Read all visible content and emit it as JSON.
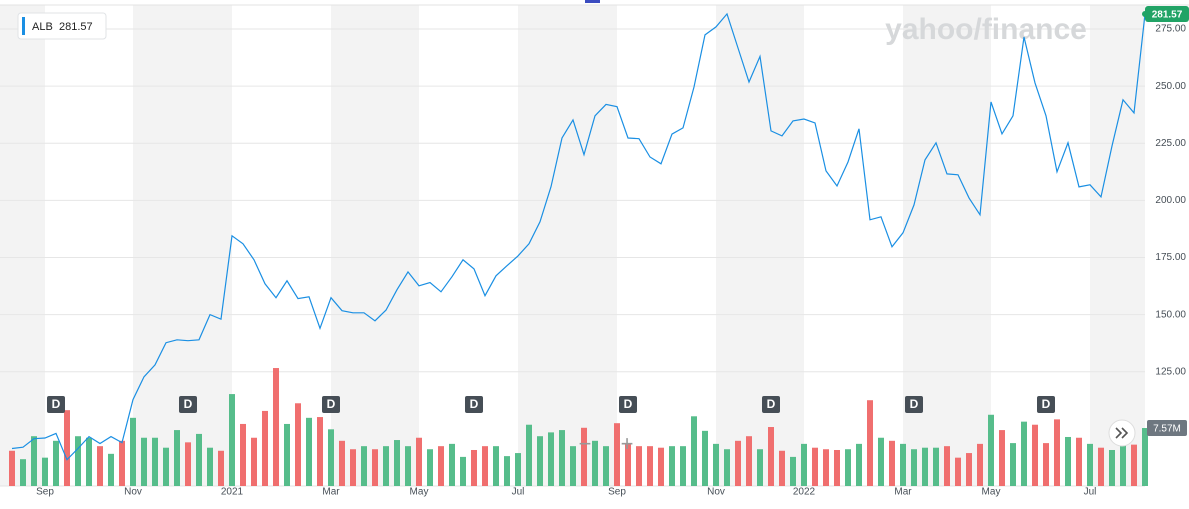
{
  "chart_data": {
    "type": "line",
    "logo": "yahoo/finance",
    "categories": [
      null,
      null,
      null,
      "Sep",
      null,
      null,
      null,
      null,
      null,
      null,
      null,
      "Nov",
      null,
      null,
      null,
      null,
      null,
      null,
      null,
      null,
      "2021",
      null,
      null,
      null,
      null,
      null,
      null,
      null,
      null,
      "Mar",
      null,
      null,
      null,
      null,
      null,
      null,
      null,
      "May",
      null,
      null,
      null,
      null,
      null,
      null,
      null,
      null,
      "Jul",
      null,
      null,
      null,
      null,
      null,
      null,
      null,
      null,
      "Sep",
      null,
      null,
      null,
      null,
      null,
      null,
      null,
      null,
      "Nov",
      null,
      null,
      null,
      null,
      null,
      null,
      null,
      "2022",
      null,
      null,
      null,
      null,
      null,
      null,
      null,
      null,
      "Mar",
      null,
      null,
      null,
      null,
      null,
      null,
      null,
      "May",
      null,
      null,
      null,
      null,
      null,
      null,
      null,
      null,
      "Jul",
      null,
      null,
      null,
      null,
      null
    ],
    "series": [
      {
        "name": "ALB",
        "color": "#1a8fe3",
        "values": [
          91.4,
          92,
          95.7,
          96,
          98,
          86.5,
          91.4,
          96.6,
          93.6,
          96.6,
          94,
          112.8,
          122.8,
          128,
          137.7,
          139,
          138.6,
          139,
          150,
          148,
          184.5,
          181,
          174,
          163.5,
          157.4,
          164.8,
          157,
          157.8,
          144,
          157.4,
          151.7,
          150.8,
          150.8,
          147.3,
          152,
          160.9,
          168.7,
          162.6,
          164,
          160,
          166.6,
          174,
          170,
          158.3,
          167,
          171.4,
          175.7,
          181,
          190.6,
          206,
          227.3,
          235.2,
          220,
          237,
          242,
          241,
          227.3,
          227,
          219,
          216,
          229,
          231.7,
          249.6,
          272.4,
          275.9,
          281.6,
          266.7,
          251.8,
          263,
          230.4,
          228.2,
          234.8,
          235.6,
          233.9,
          212.9,
          206.3,
          216.8,
          231.3,
          191.5,
          192.8,
          179.7,
          185.8,
          198,
          217.7,
          225.2,
          211.6,
          211.2,
          201.1,
          193.7,
          243.1,
          229.1,
          237,
          271.5,
          251.4,
          237,
          212.5,
          225.2,
          205.9,
          206.8,
          201.5,
          223.8,
          244,
          238.3,
          281.57
        ]
      }
    ],
    "ylim": [
      75,
      285.5
    ],
    "yticks": [
      {
        "value": 125,
        "label": "125.00"
      },
      {
        "value": 150,
        "label": "150.00"
      },
      {
        "value": 175,
        "label": "175.00"
      },
      {
        "value": 200,
        "label": "200.00"
      },
      {
        "value": 225,
        "label": "225.00"
      },
      {
        "value": 250,
        "label": "250.00"
      },
      {
        "value": 275,
        "label": "275.00"
      }
    ],
    "grid": true,
    "volume": {
      "up_color": "#56bd8b",
      "down_color": "#f06f6f",
      "last_label": "7.57M",
      "values": [
        4.6,
        3.5,
        6.5,
        3.7,
        5.9,
        9.9,
        6.5,
        6.3,
        5.2,
        4.2,
        5.9,
        8.9,
        6.3,
        6.3,
        5.0,
        7.3,
        5.7,
        6.8,
        5.0,
        4.6,
        12.0,
        8.1,
        6.3,
        9.8,
        15.4,
        8.1,
        10.8,
        8.9,
        9.0,
        7.4,
        5.9,
        4.8,
        5.2,
        4.8,
        5.2,
        6.0,
        5.2,
        6.3,
        4.8,
        5.2,
        5.5,
        3.8,
        4.7,
        5.2,
        5.2,
        3.9,
        4.3,
        8.0,
        6.5,
        7.0,
        7.3,
        5.2,
        7.6,
        5.9,
        5.2,
        8.2,
        5.6,
        5.2,
        5.2,
        5.0,
        5.2,
        5.2,
        9.1,
        7.2,
        5.5,
        4.8,
        5.9,
        6.5,
        4.8,
        7.7,
        4.6,
        3.8,
        5.5,
        5.0,
        4.8,
        4.7,
        4.8,
        5.5,
        11.2,
        6.3,
        5.9,
        5.5,
        4.8,
        5.0,
        5.0,
        5.2,
        3.7,
        4.3,
        5.5,
        9.3,
        7.3,
        5.6,
        8.4,
        8.0,
        5.6,
        8.7,
        6.4,
        6.3,
        5.5,
        5.0,
        4.7,
        5.5,
        5.4,
        7.57
      ]
    },
    "dividends": {
      "label": "D",
      "at": [
        4,
        16,
        29,
        42,
        56,
        69,
        82,
        94
      ]
    }
  }
}
